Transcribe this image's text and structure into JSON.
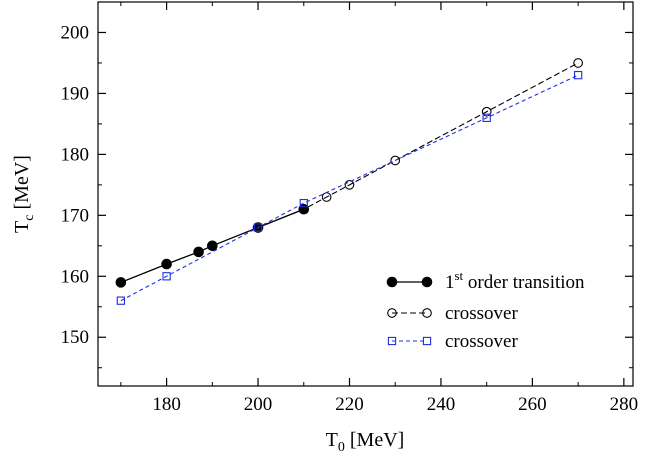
{
  "chart_data": {
    "type": "line",
    "title": "",
    "xlabel": {
      "main": "T",
      "sub": "0",
      "unit": " [MeV]"
    },
    "ylabel": {
      "main": "T",
      "sub": "c",
      "unit": " [MeV]"
    },
    "xlim": [
      165,
      282
    ],
    "ylim": [
      142,
      205
    ],
    "xticks": [
      180,
      200,
      220,
      240,
      260,
      280
    ],
    "yticks": [
      150,
      160,
      170,
      180,
      190,
      200
    ],
    "grid": false,
    "legend_position": "bottom-right",
    "series": [
      {
        "name": "1st order transition",
        "label": {
          "main": "1",
          "sup": "st",
          "rest": " order transition"
        },
        "line": "solid",
        "marker": "filled-circle",
        "color": "#000000",
        "points": [
          [
            170,
            159
          ],
          [
            180,
            162
          ],
          [
            187,
            164
          ],
          [
            190,
            165
          ],
          [
            200,
            168
          ],
          [
            210,
            171
          ]
        ]
      },
      {
        "name": "crossover",
        "label": {
          "main": "crossover"
        },
        "line": "dashed",
        "marker": "open-circle",
        "color": "#000000",
        "points": [
          [
            200,
            168
          ],
          [
            210,
            171
          ],
          [
            215,
            173
          ],
          [
            220,
            175
          ],
          [
            230,
            179
          ],
          [
            250,
            187
          ],
          [
            270,
            195
          ]
        ]
      },
      {
        "name": "crossover",
        "label": {
          "main": "crossover"
        },
        "line": "dashed",
        "marker": "open-square",
        "color": "#1f2fe0",
        "points": [
          [
            170,
            156
          ],
          [
            180,
            160
          ],
          [
            200,
            168
          ],
          [
            210,
            172
          ],
          [
            250,
            186
          ],
          [
            270,
            193
          ]
        ]
      }
    ]
  }
}
